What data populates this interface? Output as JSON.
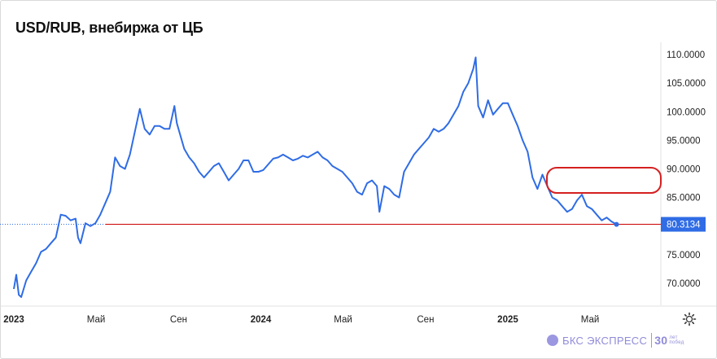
{
  "title": "USD/RUB, внебиржа от ЦБ",
  "brand": {
    "name": "БКС ЭКСПРЕСС",
    "badge": "30",
    "badge_sub_1": "лет",
    "badge_sub_2": "побед"
  },
  "colors": {
    "line": "#2f6ce5",
    "current_line": "#cc0000",
    "highlight": "#d42020",
    "label_bg": "#2f6ce5",
    "label_text": "#ffffff",
    "grid_border": "#e0e0e0"
  },
  "chart_data": {
    "type": "line",
    "title": "USD/RUB, внебиржа от ЦБ",
    "ylim": [
      66,
      112.5
    ],
    "xlim": [
      2023.0,
      2025.58
    ],
    "y_ticks": [
      "110.0000",
      "105.0000",
      "100.0000",
      "95.0000",
      "90.0000",
      "85.0000",
      "80.0000",
      "75.0000",
      "70.0000"
    ],
    "y_tick_values": [
      110,
      105,
      100,
      95,
      90,
      85,
      80,
      75,
      70
    ],
    "x_ticks": [
      {
        "label": "2023",
        "t": 2023.0,
        "bold": true
      },
      {
        "label": "Май",
        "t": 2023.333,
        "bold": false
      },
      {
        "label": "Сен",
        "t": 2023.667,
        "bold": false
      },
      {
        "label": "2024",
        "t": 2024.0,
        "bold": true
      },
      {
        "label": "Май",
        "t": 2024.333,
        "bold": false
      },
      {
        "label": "Сен",
        "t": 2024.667,
        "bold": false
      },
      {
        "label": "2025",
        "t": 2025.0,
        "bold": true
      },
      {
        "label": "Май",
        "t": 2025.333,
        "bold": false
      }
    ],
    "current_value": "80.3134",
    "current_value_num": 80.3134,
    "series": [
      {
        "x": [
          2023.0,
          2023.01,
          2023.02,
          2023.03,
          2023.05,
          2023.07,
          2023.09,
          2023.11,
          2023.13,
          2023.15,
          2023.17,
          2023.19,
          2023.21,
          2023.23,
          2023.25,
          2023.26,
          2023.27,
          2023.29,
          2023.31,
          2023.33,
          2023.35,
          2023.37,
          2023.39,
          2023.41,
          2023.43,
          2023.45,
          2023.47,
          2023.49,
          2023.51,
          2023.53,
          2023.55,
          2023.57,
          2023.59,
          2023.61,
          2023.63,
          2023.65,
          2023.66,
          2023.67,
          2023.69,
          2023.71,
          2023.73,
          2023.75,
          2023.77,
          2023.79,
          2023.81,
          2023.83,
          2023.85,
          2023.87,
          2023.89,
          2023.91,
          2023.93,
          2023.95,
          2023.97,
          2023.99,
          2024.01,
          2024.03,
          2024.05,
          2024.07,
          2024.09,
          2024.11,
          2024.13,
          2024.15,
          2024.17,
          2024.19,
          2024.21,
          2024.23,
          2024.25,
          2024.27,
          2024.29,
          2024.31,
          2024.33,
          2024.35,
          2024.37,
          2024.39,
          2024.41,
          2024.43,
          2024.45,
          2024.47,
          2024.48,
          2024.5,
          2024.52,
          2024.54,
          2024.56,
          2024.58,
          2024.6,
          2024.62,
          2024.64,
          2024.66,
          2024.68,
          2024.7,
          2024.72,
          2024.74,
          2024.76,
          2024.78,
          2024.8,
          2024.82,
          2024.84,
          2024.86,
          2024.87,
          2024.88,
          2024.9,
          2024.92,
          2024.94,
          2024.96,
          2024.98,
          2025.0,
          2025.02,
          2025.04,
          2025.06,
          2025.08,
          2025.1,
          2025.12,
          2025.14,
          2025.16,
          2025.18,
          2025.2,
          2025.22,
          2025.24,
          2025.26,
          2025.28,
          2025.3,
          2025.32,
          2025.34,
          2025.36,
          2025.38,
          2025.4,
          2025.42,
          2025.44
        ],
        "y": [
          69.0,
          71.5,
          68.0,
          67.6,
          70.5,
          72.0,
          73.5,
          75.5,
          76.0,
          77.0,
          78.0,
          82.0,
          81.8,
          81.0,
          81.3,
          78.0,
          77.0,
          80.5,
          80.0,
          80.5,
          82.0,
          84.0,
          86.0,
          92.0,
          90.5,
          90.0,
          92.5,
          96.5,
          100.5,
          97.0,
          96.0,
          97.5,
          97.5,
          97.0,
          97.0,
          101.0,
          98.0,
          96.5,
          93.5,
          92.0,
          91.0,
          89.5,
          88.5,
          89.5,
          90.5,
          91.0,
          89.5,
          88.0,
          89.0,
          90.0,
          91.5,
          91.5,
          89.5,
          89.5,
          89.8,
          90.8,
          91.8,
          92.0,
          92.5,
          92.0,
          91.5,
          91.8,
          92.3,
          92.0,
          92.5,
          93.0,
          92.0,
          91.5,
          90.5,
          90.0,
          89.5,
          88.5,
          87.5,
          86.0,
          85.5,
          87.5,
          88.0,
          87.0,
          82.5,
          87.0,
          86.5,
          85.5,
          85.0,
          89.5,
          91.0,
          92.5,
          93.5,
          94.5,
          95.5,
          97.0,
          96.5,
          97.0,
          98.0,
          99.5,
          101.0,
          103.5,
          105.0,
          107.5,
          109.5,
          101.0,
          99.0,
          102.0,
          99.5,
          100.5,
          101.5,
          101.5,
          99.5,
          97.5,
          95.0,
          93.0,
          88.5,
          86.5,
          89.0,
          87.0,
          85.0,
          84.5,
          83.5,
          82.5,
          83.0,
          84.5,
          85.5,
          83.5,
          83.0,
          82.0,
          81.0,
          81.5,
          80.8,
          80.3
        ]
      }
    ]
  }
}
